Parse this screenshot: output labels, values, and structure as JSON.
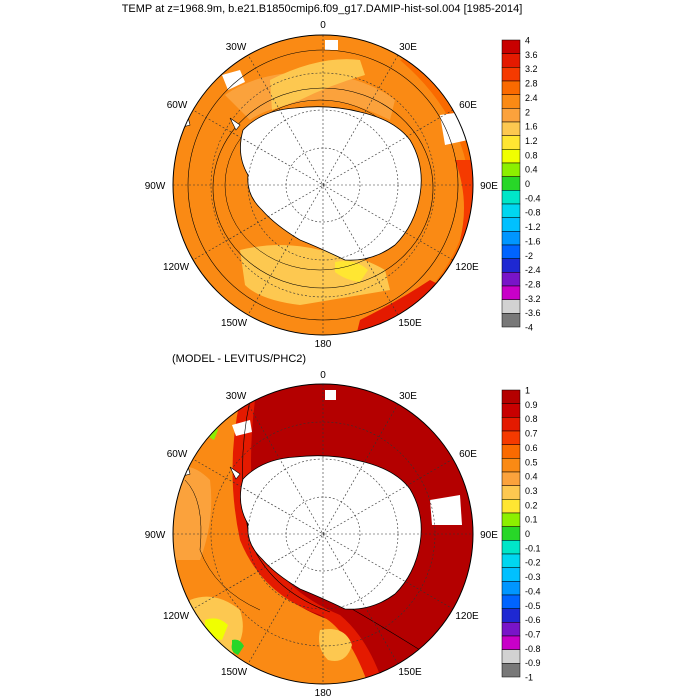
{
  "panels": [
    {
      "title": "TEMP at z=1968.9m, b.e21.B1850cmip6.f09_g17.DAMIP-hist-sol.004 [1985-2014]",
      "lon_labels": [
        "0",
        "30E",
        "60E",
        "90E",
        "120E",
        "150E",
        "180",
        "150W",
        "120W",
        "90W",
        "60W",
        "30W"
      ],
      "colorbar": {
        "labels": [
          "4",
          "3.6",
          "3.2",
          "2.8",
          "2.4",
          "2",
          "1.6",
          "1.2",
          "0.8",
          "0.4",
          "0",
          "-0.4",
          "-0.8",
          "-1.2",
          "-1.6",
          "-2",
          "-2.4",
          "-2.8",
          "-3.2",
          "-3.6",
          "-4"
        ],
        "colors": [
          "#c80000",
          "#e41a00",
          "#f53a00",
          "#fa6a00",
          "#fa8a14",
          "#fba23c",
          "#fdc850",
          "#ffe632",
          "#f0ff00",
          "#8cf000",
          "#28d728",
          "#00e6c8",
          "#00d7f0",
          "#00c0ff",
          "#0096ff",
          "#0064ff",
          "#1e28d2",
          "#7814c8",
          "#c800c8",
          "#d2d2d2",
          "#787878"
        ]
      }
    },
    {
      "title": "(MODEL - LEVITUS/PHC2)",
      "lon_labels": [
        "0",
        "30E",
        "60E",
        "90E",
        "120E",
        "150E",
        "180",
        "150W",
        "120W",
        "90W",
        "60W",
        "30W"
      ],
      "colorbar": {
        "labels": [
          "1",
          "0.9",
          "0.8",
          "0.7",
          "0.6",
          "0.5",
          "0.4",
          "0.3",
          "0.2",
          "0.1",
          "0",
          "-0.1",
          "-0.2",
          "-0.3",
          "-0.4",
          "-0.5",
          "-0.6",
          "-0.7",
          "-0.8",
          "-0.9",
          "-1"
        ],
        "colors": [
          "#b40000",
          "#c80000",
          "#e41a00",
          "#f53a00",
          "#fa6a00",
          "#fa8a14",
          "#fba23c",
          "#fdc850",
          "#ffe632",
          "#8cf000",
          "#28d728",
          "#00e6c8",
          "#00d7f0",
          "#00c0ff",
          "#0096ff",
          "#0064ff",
          "#1e28d2",
          "#7814c8",
          "#c800c8",
          "#d2d2d2",
          "#787878"
        ]
      }
    }
  ]
}
